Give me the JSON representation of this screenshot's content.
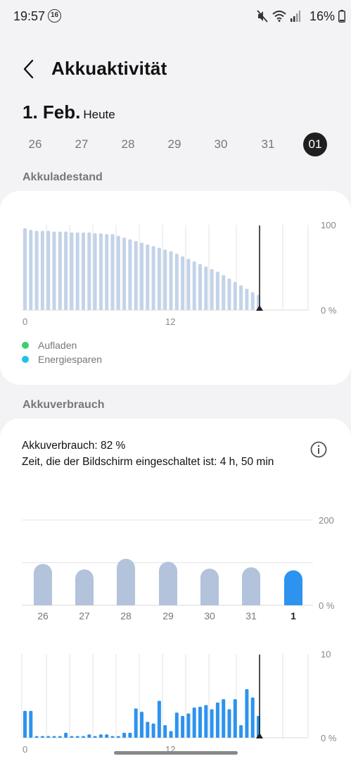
{
  "status_bar": {
    "time": "19:57",
    "badge": "16",
    "icons": [
      "mute-icon",
      "wifi-icon",
      "signal-icon"
    ],
    "battery": "16%"
  },
  "header": {
    "title": "Akkuaktivität"
  },
  "date": {
    "day": "1. Feb.",
    "label": "Heute"
  },
  "days": [
    "26",
    "27",
    "28",
    "29",
    "30",
    "31",
    "01"
  ],
  "selected_day_index": 6,
  "battery_level": {
    "section_label": "Akkuladestand",
    "chart_data": {
      "type": "bar",
      "y_ticks": [
        "100",
        "0 %"
      ],
      "x_ticks": [
        "0",
        "12"
      ],
      "ylim": [
        0,
        100
      ],
      "values": [
        96,
        94,
        93,
        93,
        93,
        92,
        92,
        92,
        91,
        91,
        91,
        91,
        90,
        90,
        89,
        89,
        87,
        85,
        83,
        81,
        79,
        77,
        75,
        73,
        71,
        69,
        66,
        63,
        60,
        57,
        54,
        51,
        48,
        45,
        41,
        37,
        33,
        29,
        25,
        21,
        18
      ],
      "color": "#c3d3e8"
    },
    "legend": [
      {
        "label": "Aufladen",
        "color": "#3ecf6a"
      },
      {
        "label": "Energiesparen",
        "color": "#21c3e4"
      }
    ]
  },
  "usage": {
    "section_label": "Akkuverbrauch",
    "line1": "Akkuverbrauch: 82 %",
    "line2": "Zeit, die der Bildschirm eingeschaltet ist: 4 h, 50 min",
    "weekly_chart": {
      "type": "bar",
      "categories": [
        "26",
        "27",
        "28",
        "29",
        "30",
        "31",
        "1"
      ],
      "values": [
        97,
        84,
        109,
        102,
        86,
        89,
        82
      ],
      "y_ticks": [
        "200",
        "0 %"
      ],
      "ylim": [
        0,
        200
      ],
      "highlight_index": 6,
      "color": "#b2c3db",
      "highlight_color": "#2d93ee"
    },
    "hourly_chart": {
      "type": "bar",
      "y_ticks": [
        "10",
        "0 %"
      ],
      "x_ticks": [
        "0",
        "12"
      ],
      "ylim": [
        0,
        10
      ],
      "values": [
        3.2,
        3.2,
        0.2,
        0.2,
        0.2,
        0.2,
        0.2,
        0.6,
        0.2,
        0.2,
        0.2,
        0.4,
        0.2,
        0.4,
        0.4,
        0.2,
        0.2,
        0.6,
        0.6,
        3.5,
        3.1,
        1.9,
        1.7,
        4.4,
        1.5,
        0.8,
        3.0,
        2.6,
        2.9,
        3.6,
        3.7,
        3.9,
        3.4,
        4.2,
        4.6,
        3.4,
        4.6,
        1.5,
        5.8,
        4.8,
        2.6
      ],
      "color": "#2d93ee"
    }
  }
}
